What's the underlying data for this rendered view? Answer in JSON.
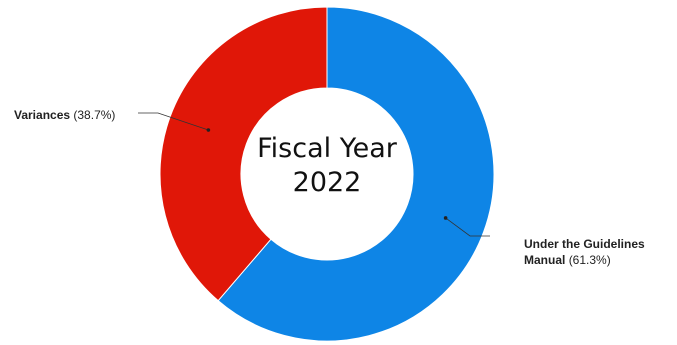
{
  "chart_data": {
    "type": "pie",
    "donut": true,
    "center_title": [
      "Fiscal Year",
      "2022"
    ],
    "slices": [
      {
        "name": "Under the Guidelines Manual",
        "name_lines": [
          "Under the Guidelines",
          "Manual"
        ],
        "value": 61.3,
        "value_label": "(61.3%)",
        "color": "#0e85e6"
      },
      {
        "name": "Variances",
        "value": 38.7,
        "value_label": "(38.7%)",
        "color": "#e01708"
      }
    ]
  }
}
